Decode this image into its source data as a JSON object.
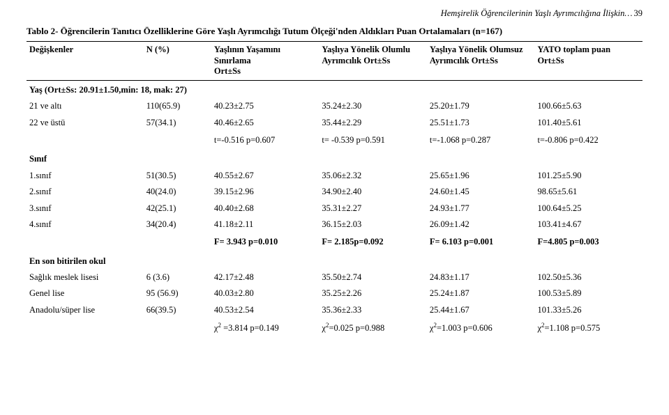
{
  "header": {
    "running": "Hemşirelik Öğrencilerinin Yaşlı Ayrımcılığına İlişkin…",
    "pagenum": "39"
  },
  "title": "Tablo 2- Öğrencilerin Tanıtıcı Özelliklerine Göre Yaşlı Ayrımcılığı Tutum Ölçeği'nden Aldıkları Puan Ortalamaları (n=167)",
  "columns": {
    "var": "Değişkenler",
    "n": "N (%)",
    "c1a": "Yaşlının Yaşamını Sınırlama",
    "c1b": "Ort±Ss",
    "c2a": "Yaşlıya Yönelik Olumlu",
    "c2b": "Ayrımcılık Ort±Ss",
    "c3a": "Yaşlıya Yönelik Olumsuz",
    "c3b": "Ayrımcılık Ort±Ss",
    "c4a": "YATO toplam puan",
    "c4b": "Ort±Ss"
  },
  "groups": {
    "yas": {
      "label": "Yaş (Ort±Ss: 20.91±1.50,min: 18, mak: 27)",
      "rows": [
        {
          "label": "21 ve altı",
          "n": "110(65.9)",
          "c1": "40.23±2.75",
          "c2": "35.24±2.30",
          "c3": "25.20±1.79",
          "c4": "100.66±5.63"
        },
        {
          "label": "22 ve üstü",
          "n": "57(34.1)",
          "c1": "40.46±2.65",
          "c2": "35.44±2.29",
          "c3": "25.51±1.73",
          "c4": "101.40±5.61"
        }
      ],
      "stats": {
        "c1": "t=-0.516 p=0.607",
        "c2": "t= -0.539 p=0.591",
        "c3": "t=-1.068 p=0.287",
        "c4": "t=-0.806 p=0.422"
      }
    },
    "sinif": {
      "label": "Sınıf",
      "rows": [
        {
          "label": "1.sınıf",
          "n": "51(30.5)",
          "c1": "40.55±2.67",
          "c2": "35.06±2.32",
          "c3": "25.65±1.96",
          "c4": "101.25±5.90"
        },
        {
          "label": "2.sınıf",
          "n": "40(24.0)",
          "c1": "39.15±2.96",
          "c2": "34.90±2.40",
          "c3": "24.60±1.45",
          "c4": "98.65±5.61"
        },
        {
          "label": "3.sınıf",
          "n": "42(25.1)",
          "c1": "40.40±2.68",
          "c2": "35.31±2.27",
          "c3": "24.93±1.77",
          "c4": "100.64±5.25"
        },
        {
          "label": "4.sınıf",
          "n": "34(20.4)",
          "c1": "41.18±2.11",
          "c2": "36.15±2.03",
          "c3": "26.09±1.42",
          "c4": "103.41±4.67"
        }
      ],
      "stats": {
        "c1": "F= 3.943 p=0.010",
        "c2": "F= 2.185p=0.092",
        "c3": "F= 6.103 p=0.001",
        "c4": "F=4.805 p=0.003"
      }
    },
    "okul": {
      "label": "En son bitirilen okul",
      "rows": [
        {
          "label": "Sağlık meslek lisesi",
          "n": "6 (3.6)",
          "c1": "42.17±2.48",
          "c2": "35.50±2.74",
          "c3": "24.83±1.17",
          "c4": "102.50±5.36"
        },
        {
          "label": "Genel lise",
          "n": "95 (56.9)",
          "c1": "40.03±2.80",
          "c2": "35.25±2.26",
          "c3": "25.24±1.87",
          "c4": "100.53±5.89"
        },
        {
          "label": "Anadolu/süper lise",
          "n": "66(39.5)",
          "c1": "40.53±2.54",
          "c2": "35.36±2.33",
          "c3": "25.44±1.67",
          "c4": "101.33±5.26"
        }
      ],
      "stats_chi": {
        "c1": {
          "pre": "χ",
          "sup": "2",
          "post": " =3.814 p=0.149"
        },
        "c2": {
          "pre": "χ",
          "sup": "2",
          "post": "=0.025 p=0.988"
        },
        "c3": {
          "pre": "χ",
          "sup": "2",
          "post": "=1.003 p=0.606"
        },
        "c4": {
          "pre": "χ",
          "sup": "2",
          "post": "=1.108 p=0.575"
        }
      }
    }
  }
}
